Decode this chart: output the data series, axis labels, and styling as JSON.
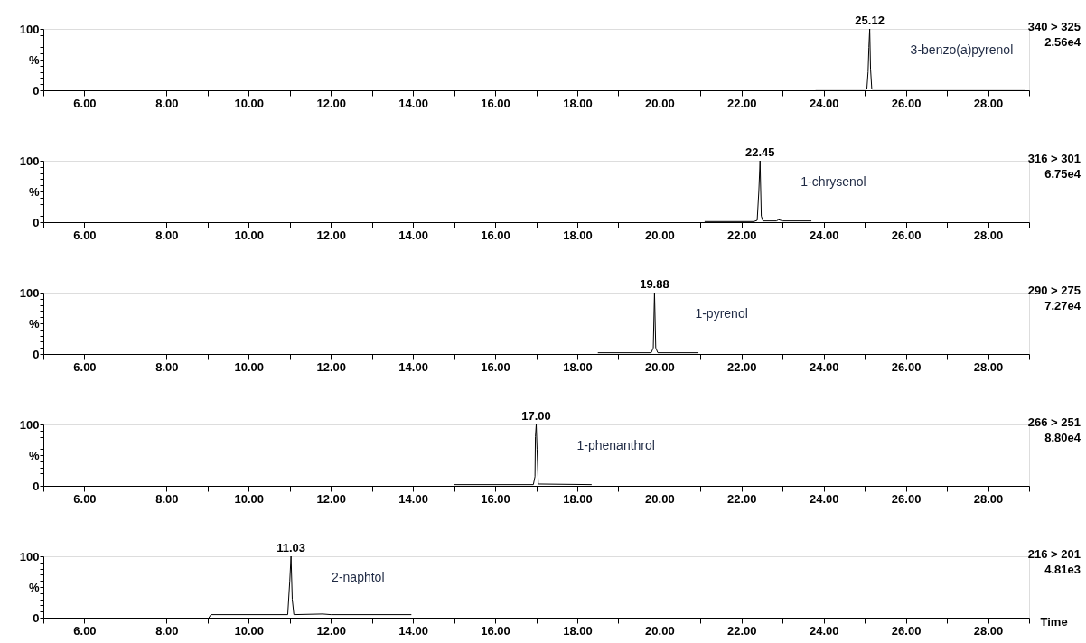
{
  "chart_data": [
    {
      "type": "line",
      "color": "#000000",
      "x": [
        23.8,
        25.05,
        25.08,
        25.1,
        25.12,
        25.14,
        25.17,
        28.9
      ],
      "values": [
        2,
        2,
        30,
        70,
        100,
        35,
        2,
        2
      ],
      "xlim": [
        5,
        29
      ],
      "ylim": [
        0,
        100
      ],
      "xticks": [
        {
          "value": 5,
          "label": null
        },
        {
          "value": 6,
          "label": "6.00"
        },
        {
          "value": 7,
          "label": null
        },
        {
          "value": 8,
          "label": "8.00"
        },
        {
          "value": 9,
          "label": null
        },
        {
          "value": 10,
          "label": "10.00"
        },
        {
          "value": 11,
          "label": null
        },
        {
          "value": 12,
          "label": "12.00"
        },
        {
          "value": 13,
          "label": null
        },
        {
          "value": 14,
          "label": "14.00"
        },
        {
          "value": 15,
          "label": null
        },
        {
          "value": 16,
          "label": "16.00"
        },
        {
          "value": 17,
          "label": null
        },
        {
          "value": 18,
          "label": "18.00"
        },
        {
          "value": 19,
          "label": null
        },
        {
          "value": 20,
          "label": "20.00"
        },
        {
          "value": 21,
          "label": null
        },
        {
          "value": 22,
          "label": "22.00"
        },
        {
          "value": 23,
          "label": null
        },
        {
          "value": 24,
          "label": "24.00"
        },
        {
          "value": 25,
          "label": null
        },
        {
          "value": 26,
          "label": "26.00"
        },
        {
          "value": 27,
          "label": null
        },
        {
          "value": 28,
          "label": "28.00"
        },
        {
          "value": 29,
          "label": null
        }
      ],
      "yticks": [
        0,
        {
          "value": 10,
          "label": null
        },
        {
          "value": 20,
          "label": null
        },
        {
          "value": 30,
          "label": null
        },
        {
          "value": 40,
          "label": null
        },
        {
          "value": 50,
          "label": "%"
        },
        {
          "value": 60,
          "label": null
        },
        {
          "value": 70,
          "label": null
        },
        {
          "value": 80,
          "label": null
        },
        {
          "value": 90,
          "label": null
        },
        100
      ],
      "annotations": [
        {
          "text": "25.12",
          "x": 25.12,
          "y": 100
        },
        "3-benzo(a)pyrenol",
        "340 > 325",
        "2.56e4"
      ]
    },
    {
      "type": "line",
      "color": "#000000",
      "x": [
        21.1,
        22.3,
        22.38,
        22.42,
        22.45,
        22.48,
        22.52,
        22.85,
        22.9,
        23.0,
        23.7
      ],
      "values": [
        1,
        1,
        3,
        50,
        100,
        10,
        2,
        2,
        4,
        2,
        2
      ],
      "xlim": [
        5,
        29
      ],
      "ylim": [
        0,
        100
      ],
      "xticks": [
        {
          "value": 5,
          "label": null
        },
        {
          "value": 6,
          "label": "6.00"
        },
        {
          "value": 7,
          "label": null
        },
        {
          "value": 8,
          "label": "8.00"
        },
        {
          "value": 9,
          "label": null
        },
        {
          "value": 10,
          "label": "10.00"
        },
        {
          "value": 11,
          "label": null
        },
        {
          "value": 12,
          "label": "12.00"
        },
        {
          "value": 13,
          "label": null
        },
        {
          "value": 14,
          "label": "14.00"
        },
        {
          "value": 15,
          "label": null
        },
        {
          "value": 16,
          "label": "16.00"
        },
        {
          "value": 17,
          "label": null
        },
        {
          "value": 18,
          "label": "18.00"
        },
        {
          "value": 19,
          "label": null
        },
        {
          "value": 20,
          "label": "20.00"
        },
        {
          "value": 21,
          "label": null
        },
        {
          "value": 22,
          "label": "22.00"
        },
        {
          "value": 23,
          "label": null
        },
        {
          "value": 24,
          "label": "24.00"
        },
        {
          "value": 25,
          "label": null
        },
        {
          "value": 26,
          "label": "26.00"
        },
        {
          "value": 27,
          "label": null
        },
        {
          "value": 28,
          "label": "28.00"
        },
        {
          "value": 29,
          "label": null
        }
      ],
      "yticks": [
        0,
        {
          "value": 10,
          "label": null
        },
        {
          "value": 20,
          "label": null
        },
        {
          "value": 30,
          "label": null
        },
        {
          "value": 40,
          "label": null
        },
        {
          "value": 50,
          "label": "%"
        },
        {
          "value": 60,
          "label": null
        },
        {
          "value": 70,
          "label": null
        },
        {
          "value": 80,
          "label": null
        },
        {
          "value": 90,
          "label": null
        },
        100
      ],
      "annotations": [
        {
          "text": "22.45",
          "x": 22.45,
          "y": 100
        },
        "1-chrysenol",
        "316 > 301",
        "6.75e4"
      ]
    },
    {
      "type": "line",
      "color": "#000000",
      "x": [
        18.5,
        19.8,
        19.85,
        19.88,
        19.91,
        19.96,
        20.95
      ],
      "values": [
        2,
        2,
        10,
        100,
        10,
        2,
        2
      ],
      "xlim": [
        5,
        29
      ],
      "ylim": [
        0,
        100
      ],
      "xticks": [
        {
          "value": 5,
          "label": null
        },
        {
          "value": 6,
          "label": "6.00"
        },
        {
          "value": 7,
          "label": null
        },
        {
          "value": 8,
          "label": "8.00"
        },
        {
          "value": 9,
          "label": null
        },
        {
          "value": 10,
          "label": "10.00"
        },
        {
          "value": 11,
          "label": null
        },
        {
          "value": 12,
          "label": "12.00"
        },
        {
          "value": 13,
          "label": null
        },
        {
          "value": 14,
          "label": "14.00"
        },
        {
          "value": 15,
          "label": null
        },
        {
          "value": 16,
          "label": "16.00"
        },
        {
          "value": 17,
          "label": null
        },
        {
          "value": 18,
          "label": "18.00"
        },
        {
          "value": 19,
          "label": null
        },
        {
          "value": 20,
          "label": "20.00"
        },
        {
          "value": 21,
          "label": null
        },
        {
          "value": 22,
          "label": "22.00"
        },
        {
          "value": 23,
          "label": null
        },
        {
          "value": 24,
          "label": "24.00"
        },
        {
          "value": 25,
          "label": null
        },
        {
          "value": 26,
          "label": "26.00"
        },
        {
          "value": 27,
          "label": null
        },
        {
          "value": 28,
          "label": "28.00"
        },
        {
          "value": 29,
          "label": null
        }
      ],
      "yticks": [
        0,
        {
          "value": 10,
          "label": null
        },
        {
          "value": 20,
          "label": null
        },
        {
          "value": 30,
          "label": null
        },
        {
          "value": 40,
          "label": null
        },
        {
          "value": 50,
          "label": "%"
        },
        {
          "value": 60,
          "label": null
        },
        {
          "value": 70,
          "label": null
        },
        {
          "value": 80,
          "label": null
        },
        {
          "value": 90,
          "label": null
        },
        100
      ],
      "annotations": [
        {
          "text": "19.88",
          "x": 19.88,
          "y": 100
        },
        "1-pyrenol",
        "290 > 275",
        "7.27e4"
      ]
    },
    {
      "type": "line",
      "color": "#000000",
      "x": [
        15.0,
        16.93,
        16.97,
        16.98,
        17.0,
        17.02,
        17.05,
        18.35
      ],
      "values": [
        2,
        2,
        15,
        80,
        100,
        60,
        3,
        2
      ],
      "xlim": [
        5,
        29
      ],
      "ylim": [
        0,
        100
      ],
      "xticks": [
        {
          "value": 5,
          "label": null
        },
        {
          "value": 6,
          "label": "6.00"
        },
        {
          "value": 7,
          "label": null
        },
        {
          "value": 8,
          "label": "8.00"
        },
        {
          "value": 9,
          "label": null
        },
        {
          "value": 10,
          "label": "10.00"
        },
        {
          "value": 11,
          "label": null
        },
        {
          "value": 12,
          "label": "12.00"
        },
        {
          "value": 13,
          "label": null
        },
        {
          "value": 14,
          "label": "14.00"
        },
        {
          "value": 15,
          "label": null
        },
        {
          "value": 16,
          "label": "16.00"
        },
        {
          "value": 17,
          "label": null
        },
        {
          "value": 18,
          "label": "18.00"
        },
        {
          "value": 19,
          "label": null
        },
        {
          "value": 20,
          "label": "20.00"
        },
        {
          "value": 21,
          "label": null
        },
        {
          "value": 22,
          "label": "22.00"
        },
        {
          "value": 23,
          "label": null
        },
        {
          "value": 24,
          "label": "24.00"
        },
        {
          "value": 25,
          "label": null
        },
        {
          "value": 26,
          "label": "26.00"
        },
        {
          "value": 27,
          "label": null
        },
        {
          "value": 28,
          "label": "28.00"
        },
        {
          "value": 29,
          "label": null
        }
      ],
      "yticks": [
        0,
        {
          "value": 10,
          "label": null
        },
        {
          "value": 20,
          "label": null
        },
        {
          "value": 30,
          "label": null
        },
        {
          "value": 40,
          "label": null
        },
        {
          "value": 50,
          "label": "%"
        },
        {
          "value": 60,
          "label": null
        },
        {
          "value": 70,
          "label": null
        },
        {
          "value": 80,
          "label": null
        },
        {
          "value": 90,
          "label": null
        },
        100
      ],
      "annotations": [
        {
          "text": "17.00",
          "x": 17.0,
          "y": 100
        },
        "1-phenanthrol",
        "266 > 251",
        "8.80e4"
      ]
    },
    {
      "type": "line",
      "color": "#000000",
      "x": [
        9.03,
        9.08,
        10.95,
        11.0,
        11.03,
        11.06,
        11.1,
        11.8,
        12.0,
        13.96
      ],
      "values": [
        0,
        5,
        5,
        60,
        100,
        30,
        5,
        6,
        5,
        5
      ],
      "xlim": [
        5,
        29
      ],
      "ylim": [
        0,
        100
      ],
      "xlabel": "Time",
      "xticks": [
        {
          "value": 5,
          "label": null
        },
        {
          "value": 6,
          "label": "6.00"
        },
        {
          "value": 7,
          "label": null
        },
        {
          "value": 8,
          "label": "8.00"
        },
        {
          "value": 9,
          "label": null
        },
        {
          "value": 10,
          "label": "10.00"
        },
        {
          "value": 11,
          "label": null
        },
        {
          "value": 12,
          "label": "12.00"
        },
        {
          "value": 13,
          "label": null
        },
        {
          "value": 14,
          "label": "14.00"
        },
        {
          "value": 15,
          "label": null
        },
        {
          "value": 16,
          "label": "16.00"
        },
        {
          "value": 17,
          "label": null
        },
        {
          "value": 18,
          "label": "18.00"
        },
        {
          "value": 19,
          "label": null
        },
        {
          "value": 20,
          "label": "20.00"
        },
        {
          "value": 21,
          "label": null
        },
        {
          "value": 22,
          "label": "22.00"
        },
        {
          "value": 23,
          "label": null
        },
        {
          "value": 24,
          "label": "24.00"
        },
        {
          "value": 25,
          "label": null
        },
        {
          "value": 26,
          "label": "26.00"
        },
        {
          "value": 27,
          "label": null
        },
        {
          "value": 28,
          "label": "28.00"
        },
        {
          "value": 29,
          "label": null
        }
      ],
      "yticks": [
        0,
        {
          "value": 10,
          "label": null
        },
        {
          "value": 20,
          "label": null
        },
        {
          "value": 30,
          "label": null
        },
        {
          "value": 40,
          "label": null
        },
        {
          "value": 50,
          "label": "%"
        },
        {
          "value": 60,
          "label": null
        },
        {
          "value": 70,
          "label": null
        },
        {
          "value": 80,
          "label": null
        },
        {
          "value": 90,
          "label": null
        },
        100
      ],
      "annotations": [
        {
          "text": "11.03",
          "x": 11.03,
          "y": 100
        },
        "2-naphtol",
        "216 > 201",
        "4.81e3"
      ]
    }
  ]
}
